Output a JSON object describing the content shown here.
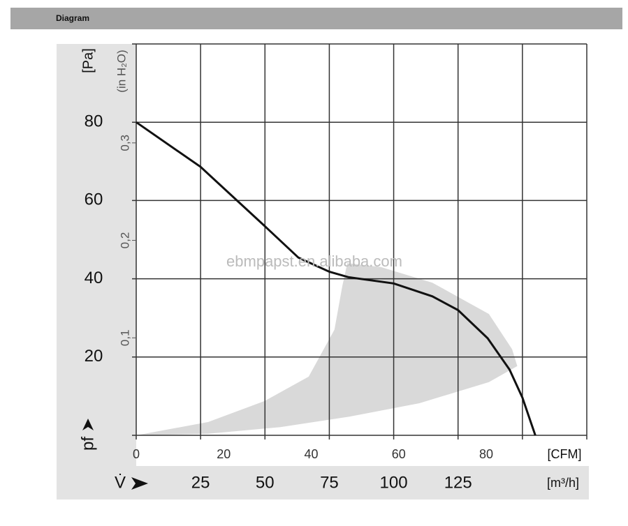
{
  "header": {
    "title": "Diagram"
  },
  "chart_data": {
    "type": "line",
    "watermark": "ebmpapst.en.alibaba.com",
    "y_label": "[Pa]",
    "y2_label": "(in H₂O)",
    "y_symbol": "pf",
    "x_label": "[m³/h]",
    "x2_label": "[CFM]",
    "x_symbol": "V̇",
    "xlim": [
      0,
      175
    ],
    "xticks": [
      25,
      50,
      75,
      100,
      125
    ],
    "x_grid": [
      0,
      25,
      50,
      75,
      100,
      125,
      150,
      175
    ],
    "x2lim": [
      0,
      103
    ],
    "x2ticks": [
      0,
      20,
      40,
      60,
      80
    ],
    "ylim": [
      0,
      100
    ],
    "yticks": [
      20,
      40,
      60,
      80
    ],
    "y_grid": [
      0,
      20,
      40,
      60,
      80,
      100
    ],
    "y2lim": [
      0,
      0.4015
    ],
    "y2ticks": [
      {
        "value": 0.1,
        "label": "0,1"
      },
      {
        "value": 0.2,
        "label": "0,2"
      },
      {
        "value": 0.3,
        "label": "0,3"
      }
    ],
    "grid": true,
    "series": [
      {
        "color": "#d9d9d9",
        "kind": "area",
        "x": [
          0,
          28,
          56,
          83,
          110,
          137,
          148,
          146,
          137,
          115,
          95,
          82,
          80,
          77,
          67,
          50,
          28,
          0
        ],
        "values": [
          0,
          0.4,
          2.1,
          4.8,
          8.2,
          13.6,
          17.7,
          22,
          31,
          39,
          43,
          44,
          38,
          27,
          15,
          8.8,
          3.4,
          0
        ]
      },
      {
        "color": "#111111",
        "kind": "line",
        "x": [
          0,
          25,
          50,
          63,
          75,
          82.5,
          100,
          115,
          125,
          136.5,
          145,
          150,
          155
        ],
        "values": [
          80,
          68.6,
          53.4,
          45.4,
          41.8,
          40.4,
          38.8,
          35.5,
          32,
          24.8,
          16.8,
          9.6,
          0
        ]
      }
    ]
  }
}
